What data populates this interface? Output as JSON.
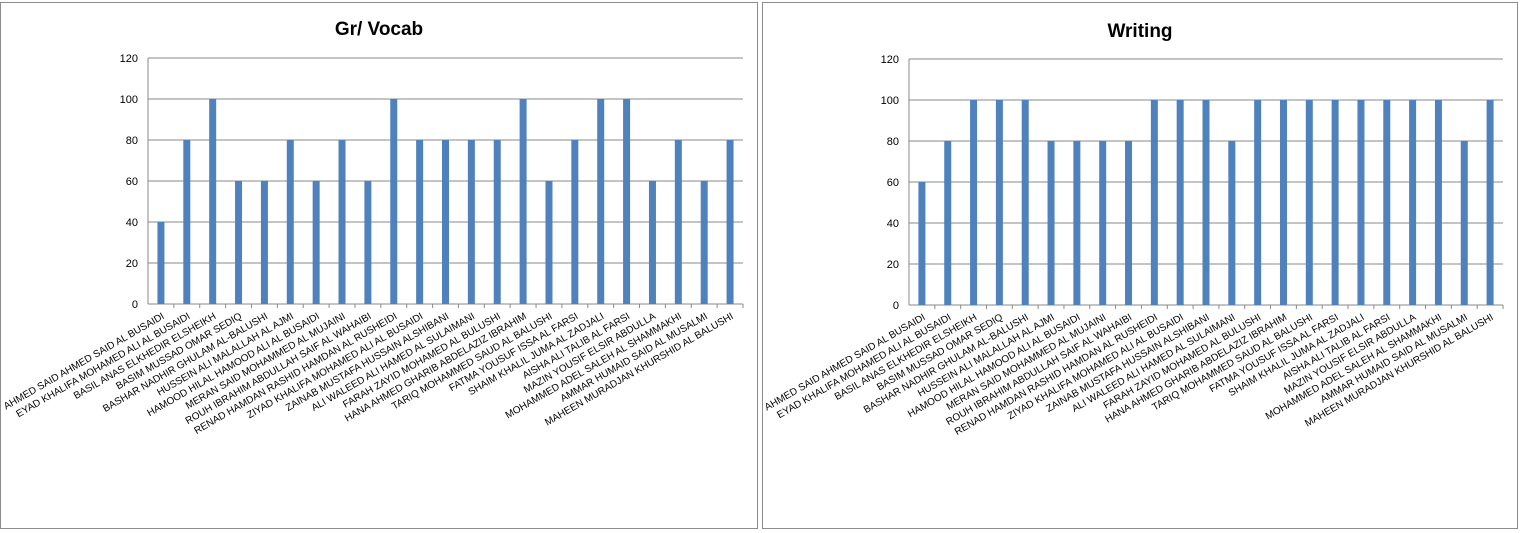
{
  "chart_data": [
    {
      "type": "bar",
      "title": "Gr/ Vocab",
      "xlabel": "",
      "ylabel": "",
      "ylim": [
        0,
        120
      ],
      "yticks": [
        0,
        20,
        40,
        60,
        80,
        100,
        120
      ],
      "grid": true,
      "bar_color": "#4f81bd",
      "categories": [
        "AHMED SAID AHMED  SAID AL BUSAIDI",
        "EYAD KHALIFA MOHAMED ALI AL BUSAIDI",
        "BASIL ANAS ELKHEDIR ELSHEIKH",
        "BASIM MUSSAD OMAR SEDIQ",
        "BASHAR NADHIR GHULAM AL-BALUSHI",
        "HUSSEIN ALI MALALLAH AL AJMI",
        "HAMOOD HILAL HAMOOD ALI AL BUSAIDI",
        "MERAN SAID MOHAMMED AL MUJAINI",
        "ROUH IBRAHIM ABDULLAH SAIF AL WAHAIBI",
        "RENAD HAMDAN RASHID HAMDAN AL RUSHEIDI",
        "ZIYAD KHALIFA MOHAMED ALI AL BUSAIDI",
        "ZAINAB MUSTAFA HUSSAIN ALSHIBANI",
        "ALI WALEED ALI HAMED AL SULAIMANI",
        "FARAH ZAYID MOHAMED AL BULUSHI",
        "HANA AHMED GHARIB ABDELAZIZ IBRAHIM",
        "TARIQ MOHAMMED SAUD AL BALUSHI",
        "FATMA YOUSUF ISSA AL FARSI",
        "SHAIM KHALIL JUMA AL ZADJALI",
        "AISHA ALI TALIB AL FARSI",
        "MAZIN YOUSIF ELSIR ABDULLA",
        "MOHAMMED ADEL SALEH AL SHAMMAKHI",
        "AMMAR HUMAID SAID AL MUSALMI",
        "MAHEEN MURADJAN KHURSHID  AL BALUSHI"
      ],
      "values": [
        40,
        80,
        100,
        60,
        60,
        80,
        60,
        80,
        60,
        100,
        80,
        80,
        80,
        80,
        100,
        60,
        80,
        100,
        100,
        60,
        80,
        60,
        80
      ]
    },
    {
      "type": "bar",
      "title": "Writing",
      "xlabel": "",
      "ylabel": "",
      "ylim": [
        0,
        120
      ],
      "yticks": [
        0,
        20,
        40,
        60,
        80,
        100,
        120
      ],
      "grid": true,
      "bar_color": "#4f81bd",
      "categories": [
        "AHMED SAID AHMED  SAID AL BUSAIDI",
        "EYAD KHALIFA MOHAMED ALI AL BUSAIDI",
        "BASIL ANAS ELKHEDIR ELSHEIKH",
        "BASIM MUSSAD OMAR SEDIQ",
        "BASHAR NADHIR GHULAM AL-BALUSHI",
        "HUSSEIN ALI MALALLAH AL AJMI",
        "HAMOOD HILAL HAMOOD ALI AL BUSAIDI",
        "MERAN SAID MOHAMMED AL MUJAINI",
        "ROUH IBRAHIM ABDULLAH SAIF AL WAHAIBI",
        "RENAD HAMDAN RASHID HAMDAN AL RUSHEIDI",
        "ZIYAD KHALIFA MOHAMED ALI AL BUSAIDI",
        "ZAINAB MUSTAFA HUSSAIN ALSHIBANI",
        "ALI WALEED ALI HAMED AL SULAIMANI",
        "FARAH ZAYID MOHAMED AL BULUSHI",
        "HANA AHMED GHARIB ABDELAZIZ IBRAHIM",
        "TARIQ MOHAMMED SAUD AL BALUSHI",
        "FATMA YOUSUF ISSA AL FARSI",
        "SHAIM KHALIL JUMA AL ZADJALI",
        "AISHA ALI TALIB AL FARSI",
        "MAZIN YOUSIF ELSIR ABDULLA",
        "MOHAMMED ADEL SALEH AL SHAMMAKHI",
        "AMMAR HUMAID SAID AL MUSALMI",
        "MAHEEN MURADJAN KHURSHID  AL BALUSHI"
      ],
      "values": [
        60,
        80,
        100,
        100,
        100,
        80,
        80,
        80,
        80,
        100,
        100,
        100,
        80,
        100,
        100,
        100,
        100,
        100,
        100,
        100,
        100,
        80,
        100
      ]
    }
  ]
}
